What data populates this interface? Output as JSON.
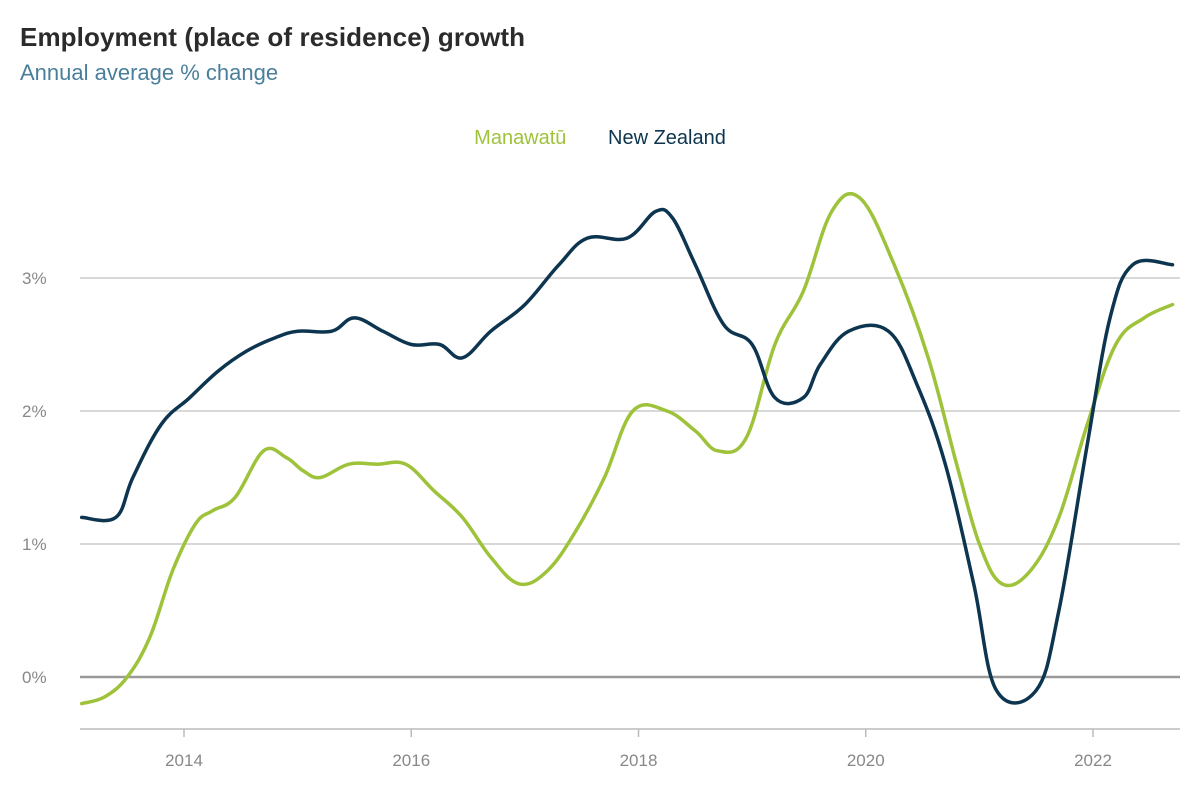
{
  "header": {
    "title": "Employment (place of residence) growth",
    "subtitle": "Annual average % change"
  },
  "colors": {
    "manawatu": "#9ec23a",
    "new_zealand": "#0d3550",
    "grid": "#cccccc",
    "zero_line": "#999999"
  },
  "chart_data": {
    "type": "line",
    "title": "Employment (place of residence) growth",
    "subtitle": "Annual average % change",
    "xlabel": "",
    "ylabel": "",
    "xlim": [
      2013.1,
      2022.85
    ],
    "ylim": [
      -0.4,
      3.9
    ],
    "y_ticks": [
      {
        "value": 0,
        "label": "0%"
      },
      {
        "value": 1,
        "label": "1%"
      },
      {
        "value": 2,
        "label": "2%"
      },
      {
        "value": 3,
        "label": "3%"
      }
    ],
    "x_ticks": [
      {
        "value": 2014,
        "label": "2014"
      },
      {
        "value": 2016,
        "label": "2016"
      },
      {
        "value": 2018,
        "label": "2018"
      },
      {
        "value": 2020,
        "label": "2020"
      },
      {
        "value": 2022,
        "label": "2022"
      }
    ],
    "grid": "horizontal",
    "legend_position": "top-center",
    "series": [
      {
        "name": "Manawatū",
        "color": "#9ec23a",
        "points": [
          [
            2013.1,
            -0.2
          ],
          [
            2013.3,
            -0.15
          ],
          [
            2013.5,
            0.0
          ],
          [
            2013.7,
            0.3
          ],
          [
            2013.9,
            0.8
          ],
          [
            2014.1,
            1.15
          ],
          [
            2014.25,
            1.25
          ],
          [
            2014.45,
            1.35
          ],
          [
            2014.7,
            1.7
          ],
          [
            2014.9,
            1.65
          ],
          [
            2015.05,
            1.55
          ],
          [
            2015.2,
            1.5
          ],
          [
            2015.45,
            1.6
          ],
          [
            2015.7,
            1.6
          ],
          [
            2015.95,
            1.6
          ],
          [
            2016.2,
            1.4
          ],
          [
            2016.45,
            1.2
          ],
          [
            2016.7,
            0.9
          ],
          [
            2016.95,
            0.7
          ],
          [
            2017.2,
            0.8
          ],
          [
            2017.45,
            1.1
          ],
          [
            2017.7,
            1.5
          ],
          [
            2017.95,
            2.0
          ],
          [
            2018.25,
            2.0
          ],
          [
            2018.5,
            1.85
          ],
          [
            2018.7,
            1.7
          ],
          [
            2018.95,
            1.8
          ],
          [
            2019.2,
            2.5
          ],
          [
            2019.45,
            2.9
          ],
          [
            2019.7,
            3.5
          ],
          [
            2019.95,
            3.6
          ],
          [
            2020.25,
            3.1
          ],
          [
            2020.55,
            2.4
          ],
          [
            2020.8,
            1.6
          ],
          [
            2021.0,
            1.0
          ],
          [
            2021.2,
            0.7
          ],
          [
            2021.45,
            0.8
          ],
          [
            2021.7,
            1.2
          ],
          [
            2021.95,
            1.9
          ],
          [
            2022.2,
            2.5
          ],
          [
            2022.45,
            2.7
          ],
          [
            2022.7,
            2.8
          ]
        ]
      },
      {
        "name": "New Zealand",
        "color": "#0d3550",
        "points": [
          [
            2013.1,
            1.2
          ],
          [
            2013.4,
            1.2
          ],
          [
            2013.55,
            1.5
          ],
          [
            2013.8,
            1.9
          ],
          [
            2014.05,
            2.1
          ],
          [
            2014.3,
            2.3
          ],
          [
            2014.55,
            2.45
          ],
          [
            2014.8,
            2.55
          ],
          [
            2015.0,
            2.6
          ],
          [
            2015.3,
            2.6
          ],
          [
            2015.5,
            2.7
          ],
          [
            2015.75,
            2.6
          ],
          [
            2016.0,
            2.5
          ],
          [
            2016.25,
            2.5
          ],
          [
            2016.45,
            2.4
          ],
          [
            2016.7,
            2.6
          ],
          [
            2017.0,
            2.8
          ],
          [
            2017.3,
            3.1
          ],
          [
            2017.55,
            3.3
          ],
          [
            2017.9,
            3.3
          ],
          [
            2018.15,
            3.5
          ],
          [
            2018.3,
            3.45
          ],
          [
            2018.5,
            3.1
          ],
          [
            2018.75,
            2.65
          ],
          [
            2019.0,
            2.5
          ],
          [
            2019.2,
            2.1
          ],
          [
            2019.45,
            2.1
          ],
          [
            2019.6,
            2.35
          ],
          [
            2019.85,
            2.6
          ],
          [
            2020.2,
            2.6
          ],
          [
            2020.45,
            2.2
          ],
          [
            2020.7,
            1.6
          ],
          [
            2020.95,
            0.7
          ],
          [
            2021.15,
            -0.1
          ],
          [
            2021.5,
            -0.1
          ],
          [
            2021.7,
            0.5
          ],
          [
            2021.95,
            1.75
          ],
          [
            2022.15,
            2.7
          ],
          [
            2022.35,
            3.1
          ],
          [
            2022.7,
            3.1
          ]
        ]
      }
    ]
  }
}
